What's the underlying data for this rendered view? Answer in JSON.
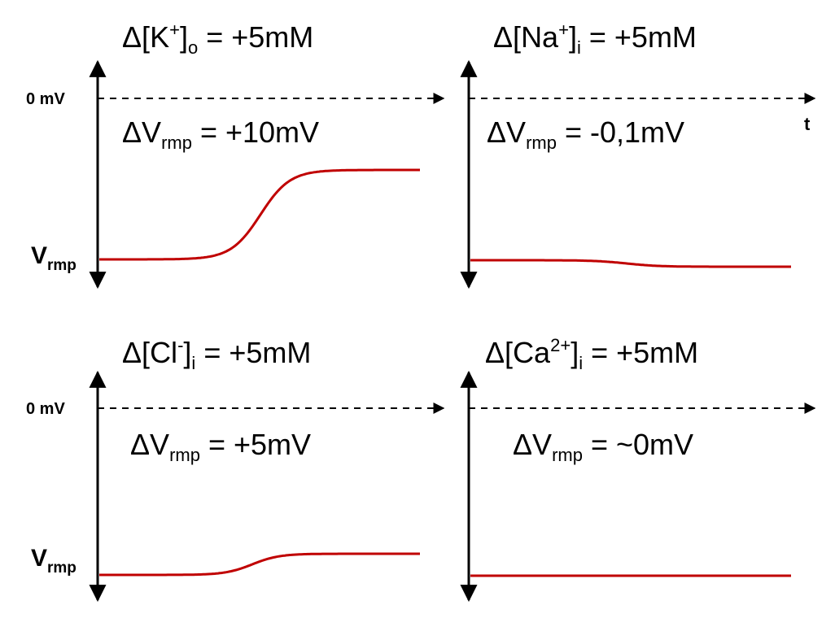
{
  "panels": [
    {
      "id": "k-out",
      "delta_conc": {
        "prefix": "Δ[",
        "ion": "K",
        "charge": "+",
        "close": "]",
        "compartment": "o",
        "value": "= +5mM"
      },
      "delta_v": {
        "prefix": "ΔV",
        "sub": "rmp",
        "value": "= +10mV"
      },
      "zero_label": "0 mV",
      "vrmp_label": {
        "base": "V",
        "sub": "rmp"
      },
      "time_label": "",
      "shift_fraction": 0.55
    },
    {
      "id": "na-in",
      "delta_conc": {
        "prefix": "Δ[",
        "ion": "Na",
        "charge": "+",
        "close": "]",
        "compartment": "i",
        "value": "= +5mM"
      },
      "delta_v": {
        "prefix": "ΔV",
        "sub": "rmp",
        "value": "= -0,1mV"
      },
      "zero_label": "",
      "vrmp_label": {
        "base": "",
        "sub": ""
      },
      "time_label": "t",
      "shift_fraction": -0.04
    },
    {
      "id": "cl-in",
      "delta_conc": {
        "prefix": "Δ[",
        "ion": "Cl",
        "charge": "-",
        "close": "]",
        "compartment": "i",
        "value": "= +5mM"
      },
      "delta_v": {
        "prefix": "ΔV",
        "sub": "rmp",
        "value": "= +5mV"
      },
      "zero_label": "0 mV",
      "vrmp_label": {
        "base": "V",
        "sub": "rmp"
      },
      "time_label": "",
      "shift_fraction": 0.14
    },
    {
      "id": "ca-in",
      "delta_conc": {
        "prefix": "Δ[",
        "ion": "Ca",
        "charge": "2+",
        "close": "]",
        "compartment": "i",
        "value": "= +5mM"
      },
      "delta_v": {
        "prefix": "ΔV",
        "sub": "rmp",
        "value": "= ~0mV"
      },
      "zero_label": "",
      "vrmp_label": {
        "base": "",
        "sub": ""
      },
      "time_label": "",
      "shift_fraction": 0.0
    }
  ],
  "colors": {
    "trace": "#c00000",
    "axis": "#000000"
  }
}
